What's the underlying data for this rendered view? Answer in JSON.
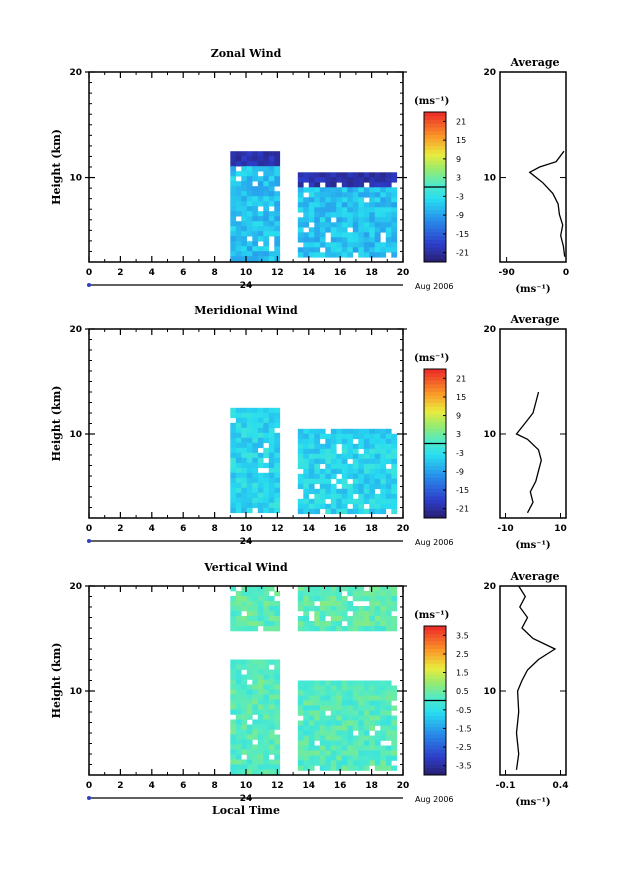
{
  "chart_data": [
    {
      "type": "heatmap",
      "title": "Zonal Wind",
      "ylabel": "Height (km)",
      "xlabel": "",
      "xlim": [
        0,
        20
      ],
      "ylim": [
        2,
        20
      ],
      "x_ticks": [
        "0",
        "2",
        "4",
        "6",
        "8",
        "10",
        "12",
        "14",
        "16",
        "18",
        "20"
      ],
      "y_ticks": [
        "10",
        "20"
      ],
      "date_label": "24",
      "month_label": "Aug 2006",
      "colorbar": {
        "unit": "(ms⁻¹)",
        "ticks": [
          "21",
          "15",
          "9",
          "3",
          "-3",
          "-9",
          "-15",
          "-21"
        ],
        "range": [
          -24,
          24
        ]
      },
      "data_blocks": [
        {
          "x": [
            9,
            12
          ],
          "y": [
            2.5,
            12.5
          ],
          "value_mid": -6,
          "value_top": -20
        },
        {
          "x": [
            13.3,
            19.3
          ],
          "y": [
            2.5,
            10.5
          ],
          "value_mid": -6,
          "value_top": -20
        }
      ],
      "average": {
        "title": "Average",
        "xticks": [
          "-90",
          "0"
        ],
        "xlim": [
          -100,
          0
        ],
        "yticks": [
          "10",
          "20"
        ],
        "unit": "(ms⁻¹)",
        "profile": [
          [
            -2,
            2.5
          ],
          [
            -4,
            3.5
          ],
          [
            -8,
            4.5
          ],
          [
            -5,
            5.5
          ],
          [
            -10,
            6.5
          ],
          [
            -12,
            7.5
          ],
          [
            -20,
            8.5
          ],
          [
            -35,
            9.5
          ],
          [
            -55,
            10.5
          ],
          [
            -40,
            11
          ],
          [
            -15,
            11.5
          ],
          [
            -3,
            12.5
          ]
        ]
      }
    },
    {
      "type": "heatmap",
      "title": "Meridional Wind",
      "ylabel": "Height (km)",
      "xlabel": "",
      "xlim": [
        0,
        20
      ],
      "ylim": [
        2,
        20
      ],
      "x_ticks": [
        "0",
        "2",
        "4",
        "6",
        "8",
        "10",
        "12",
        "14",
        "16",
        "18",
        "20"
      ],
      "y_ticks": [
        "10",
        "20"
      ],
      "date_label": "24",
      "month_label": "Aug 2006",
      "colorbar": {
        "unit": "(ms⁻¹)",
        "ticks": [
          "21",
          "15",
          "9",
          "3",
          "-3",
          "-9",
          "-15",
          "-21"
        ],
        "range": [
          -24,
          24
        ]
      },
      "data_blocks": [
        {
          "x": [
            9,
            12
          ],
          "y": [
            2.5,
            12.5
          ],
          "value_mid": -4,
          "value_top": -4
        },
        {
          "x": [
            13.3,
            19.3
          ],
          "y": [
            2.5,
            10.5
          ],
          "value_mid": -4,
          "value_top": -5
        }
      ],
      "average": {
        "title": "Average",
        "xticks": [
          "-10",
          "10"
        ],
        "xlim": [
          -12,
          12
        ],
        "yticks": [
          "10",
          "20"
        ],
        "unit": "(ms⁻¹)",
        "profile": [
          [
            -2,
            2.5
          ],
          [
            0,
            3.5
          ],
          [
            -1,
            4.5
          ],
          [
            1,
            5.5
          ],
          [
            2,
            6.5
          ],
          [
            3,
            7.5
          ],
          [
            2,
            8.5
          ],
          [
            -2,
            9.5
          ],
          [
            -6,
            10
          ],
          [
            -3,
            11
          ],
          [
            0,
            12
          ],
          [
            1,
            13
          ],
          [
            2,
            14
          ]
        ]
      }
    },
    {
      "type": "heatmap",
      "title": "Vertical Wind",
      "ylabel": "Height (km)",
      "xlabel": "Local Time",
      "xlim": [
        0,
        20
      ],
      "ylim": [
        2,
        20
      ],
      "x_ticks": [
        "0",
        "2",
        "4",
        "6",
        "8",
        "10",
        "12",
        "14",
        "16",
        "18",
        "20"
      ],
      "y_ticks": [
        "10",
        "20"
      ],
      "date_label": "24",
      "month_label": "Aug 2006",
      "colorbar": {
        "unit": "(ms⁻¹)",
        "ticks": [
          "3.5",
          "2.5",
          "1.5",
          "0.5",
          "-0.5",
          "-1.5",
          "-2.5",
          "-3.5"
        ],
        "range": [
          -4,
          4
        ]
      },
      "data_blocks": [
        {
          "x": [
            9,
            12
          ],
          "y": [
            2.5,
            13
          ],
          "value_mid": 0.2,
          "value_top": 0.2
        },
        {
          "x": [
            9,
            12
          ],
          "y": [
            16,
            20
          ],
          "value_mid": 0.3,
          "value_top": 0.3
        },
        {
          "x": [
            13.3,
            19.3
          ],
          "y": [
            2.5,
            11
          ],
          "value_mid": 0.2,
          "value_top": 0.2
        },
        {
          "x": [
            13.3,
            19.3
          ],
          "y": [
            16,
            20
          ],
          "value_mid": 0.3,
          "value_top": 0.3
        }
      ],
      "average": {
        "title": "Average",
        "xticks": [
          "-0.1",
          "0.4"
        ],
        "xlim": [
          -0.15,
          0.45
        ],
        "yticks": [
          "10",
          "20"
        ],
        "unit": "(ms⁻¹)",
        "profile": [
          [
            0,
            2.5
          ],
          [
            0.02,
            4
          ],
          [
            0,
            6
          ],
          [
            0.02,
            8
          ],
          [
            0.01,
            10
          ],
          [
            0.05,
            11
          ],
          [
            0.1,
            12
          ],
          [
            0.2,
            13
          ],
          [
            0.35,
            14
          ],
          [
            0.15,
            15
          ],
          [
            0.05,
            16
          ],
          [
            0.1,
            17
          ],
          [
            0.03,
            18
          ],
          [
            0.08,
            19
          ],
          [
            0.02,
            20
          ]
        ]
      }
    }
  ]
}
